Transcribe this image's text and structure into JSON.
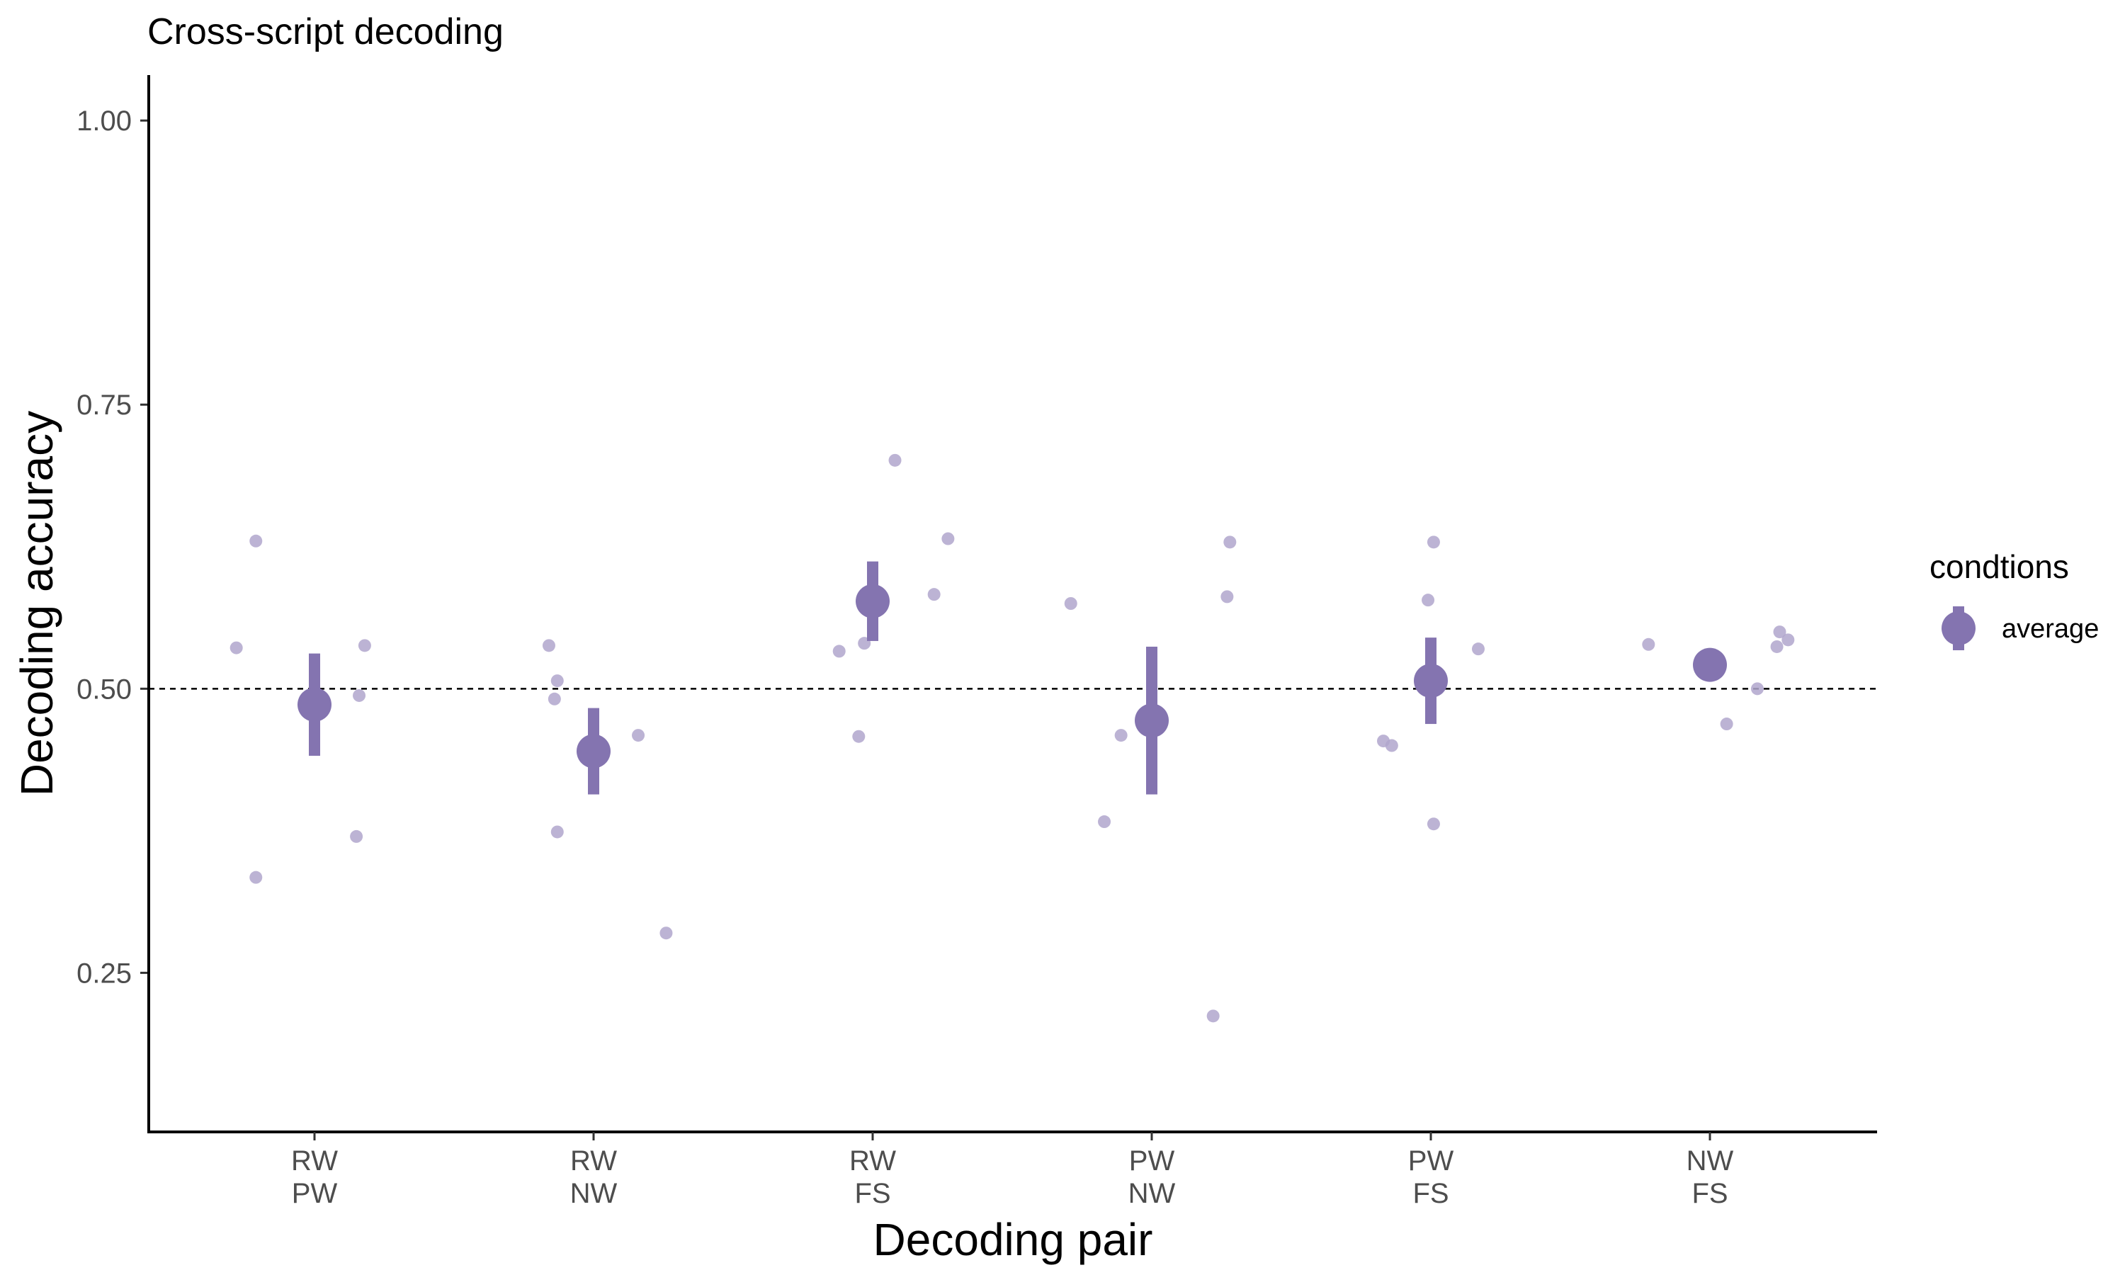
{
  "chart_data": {
    "type": "scatter",
    "title": "Cross-script decoding",
    "xlabel": "Decoding pair",
    "ylabel": "Decoding accuracy",
    "ylim": [
      0.11,
      1.04
    ],
    "yticks": [
      {
        "value": 0.25,
        "label": "0.25"
      },
      {
        "value": 0.5,
        "label": "0.50"
      },
      {
        "value": 0.75,
        "label": "0.75"
      },
      {
        "value": 1.0,
        "label": "1.00"
      }
    ],
    "reference_line": 0.5,
    "grid": false,
    "legend": {
      "title": "condtions",
      "label": "average",
      "position": "right"
    },
    "colors": {
      "average": "#8474b0",
      "points": "#b0a6cc",
      "axis": "#000000",
      "ref_line": "#000000"
    },
    "categories": [
      {
        "line1": "RW",
        "line2": "PW"
      },
      {
        "line1": "RW",
        "line2": "NW"
      },
      {
        "line1": "RW",
        "line2": "FS"
      },
      {
        "line1": "PW",
        "line2": "NW"
      },
      {
        "line1": "PW",
        "line2": "FS"
      },
      {
        "line1": "NW",
        "line2": "FS"
      }
    ],
    "series": [
      {
        "means": [
          0.486,
          0.445,
          0.577,
          0.472,
          0.507,
          0.521
        ],
        "ci_low": [
          0.441,
          0.407,
          0.542,
          0.407,
          0.469,
          0.521
        ],
        "ci_high": [
          0.531,
          0.483,
          0.612,
          0.537,
          0.545,
          0.521
        ]
      }
    ],
    "subject_points": [
      {
        "category": 0,
        "offset": -0.28,
        "y": 0.536
      },
      {
        "category": 0,
        "offset": -0.21,
        "y": 0.63
      },
      {
        "category": 0,
        "offset": -0.21,
        "y": 0.334
      },
      {
        "category": 0,
        "offset": 0.15,
        "y": 0.37
      },
      {
        "category": 0,
        "offset": 0.16,
        "y": 0.494
      },
      {
        "category": 0,
        "offset": 0.18,
        "y": 0.538
      },
      {
        "category": 1,
        "offset": -0.16,
        "y": 0.538
      },
      {
        "category": 1,
        "offset": -0.13,
        "y": 0.507
      },
      {
        "category": 1,
        "offset": -0.14,
        "y": 0.491
      },
      {
        "category": 1,
        "offset": -0.13,
        "y": 0.374
      },
      {
        "category": 1,
        "offset": 0.16,
        "y": 0.459
      },
      {
        "category": 1,
        "offset": 0.26,
        "y": 0.285
      },
      {
        "category": 2,
        "offset": -0.12,
        "y": 0.533
      },
      {
        "category": 2,
        "offset": -0.05,
        "y": 0.458
      },
      {
        "category": 2,
        "offset": -0.03,
        "y": 0.54
      },
      {
        "category": 2,
        "offset": 0.08,
        "y": 0.701
      },
      {
        "category": 2,
        "offset": 0.22,
        "y": 0.583
      },
      {
        "category": 2,
        "offset": 0.27,
        "y": 0.632
      },
      {
        "category": 3,
        "offset": -0.29,
        "y": 0.575
      },
      {
        "category": 3,
        "offset": -0.17,
        "y": 0.383
      },
      {
        "category": 3,
        "offset": -0.11,
        "y": 0.459
      },
      {
        "category": 3,
        "offset": 0.22,
        "y": 0.212
      },
      {
        "category": 3,
        "offset": 0.27,
        "y": 0.581
      },
      {
        "category": 3,
        "offset": 0.28,
        "y": 0.629
      },
      {
        "category": 4,
        "offset": -0.17,
        "y": 0.454
      },
      {
        "category": 4,
        "offset": -0.14,
        "y": 0.45
      },
      {
        "category": 4,
        "offset": -0.01,
        "y": 0.578
      },
      {
        "category": 4,
        "offset": 0.01,
        "y": 0.629
      },
      {
        "category": 4,
        "offset": 0.01,
        "y": 0.381
      },
      {
        "category": 4,
        "offset": 0.17,
        "y": 0.535
      },
      {
        "category": 5,
        "offset": -0.22,
        "y": 0.539
      },
      {
        "category": 5,
        "offset": 0.06,
        "y": 0.469
      },
      {
        "category": 5,
        "offset": 0.17,
        "y": 0.5
      },
      {
        "category": 5,
        "offset": 0.24,
        "y": 0.537
      },
      {
        "category": 5,
        "offset": 0.25,
        "y": 0.55
      },
      {
        "category": 5,
        "offset": 0.28,
        "y": 0.543
      }
    ]
  }
}
